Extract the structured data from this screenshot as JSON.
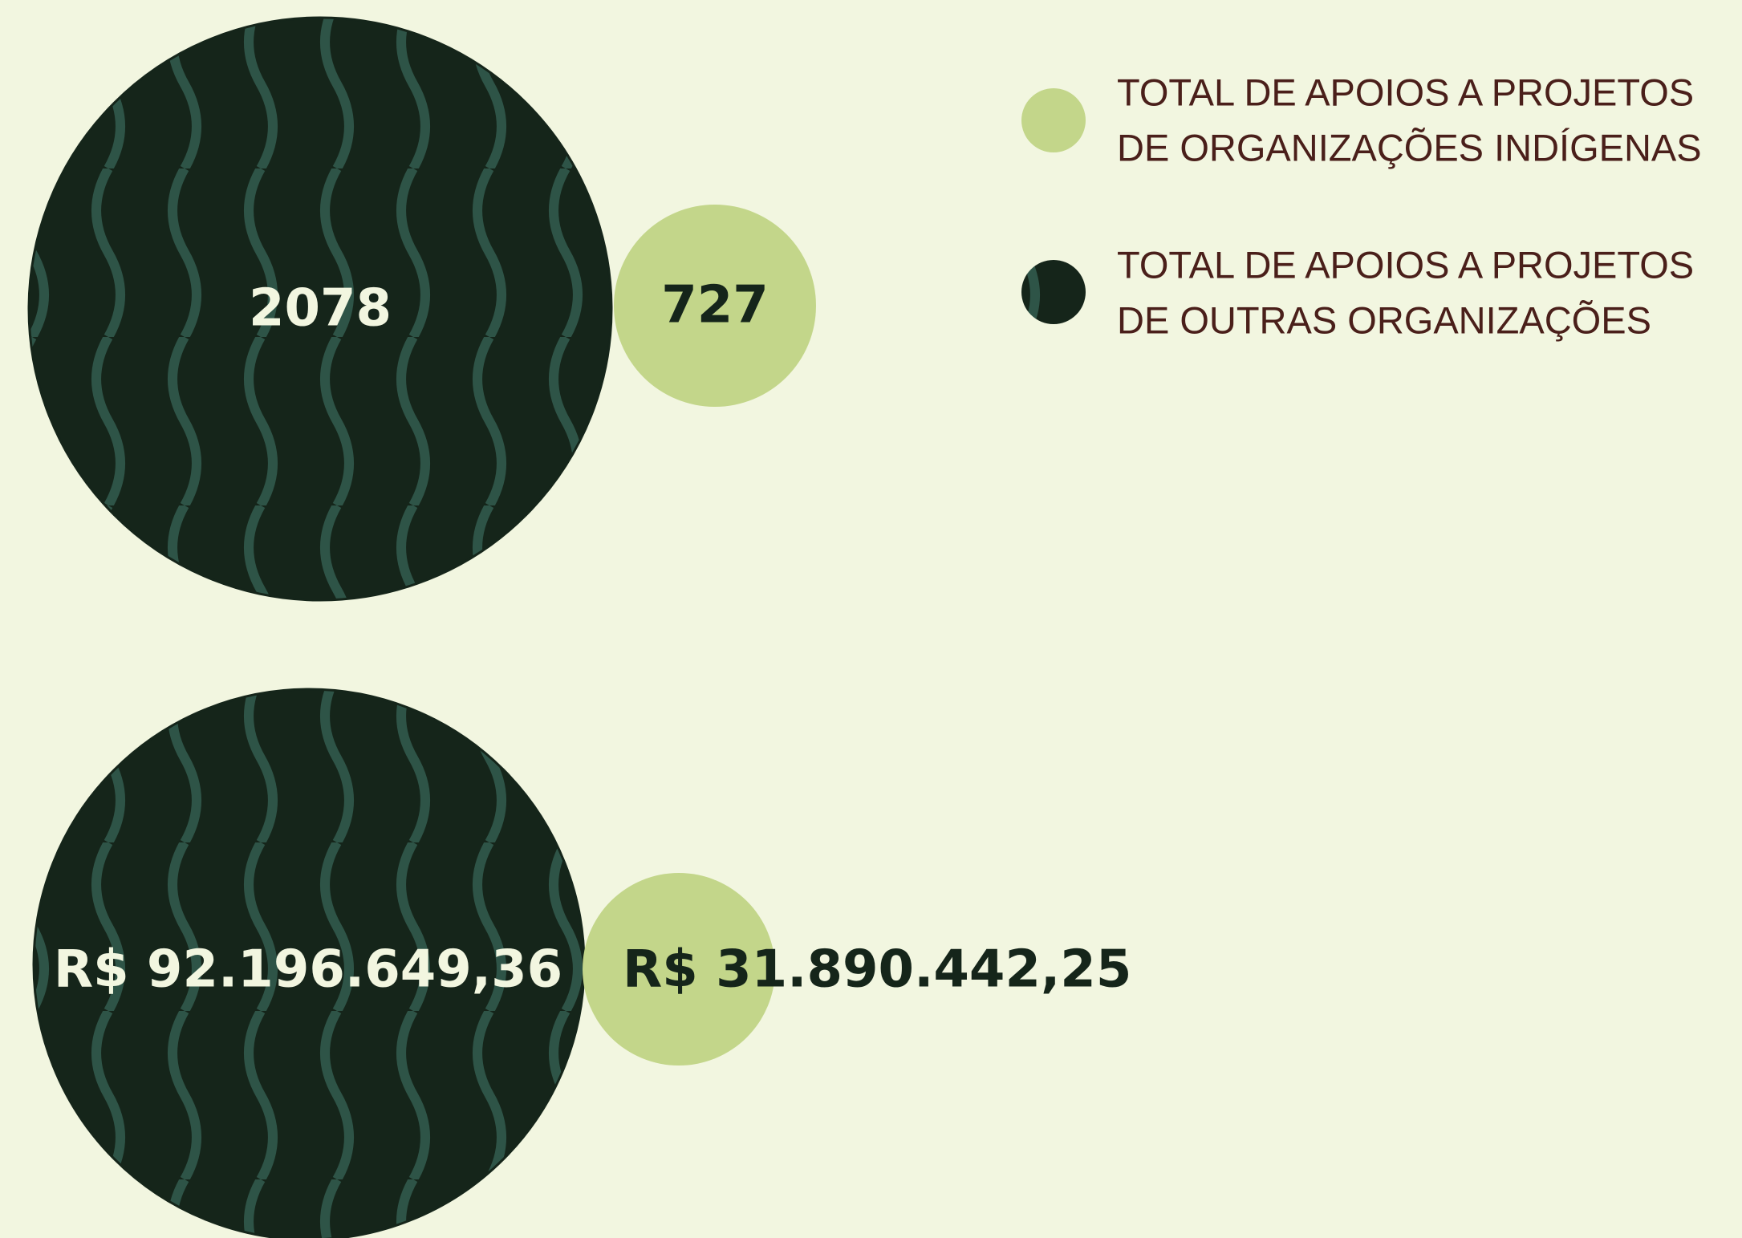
{
  "legend": [
    {
      "lines": [
        "TOTAL DE APOIOS A PROJETOS",
        "DE ORGANIZAÇÕES INDÍGENAS"
      ]
    },
    {
      "lines": [
        "TOTAL DE APOIOS A PROJETOS",
        "DE OUTRAS ORGANIZAÇÕES"
      ]
    }
  ],
  "rows": [
    {
      "outras": "2078",
      "indigenas": "727"
    },
    {
      "outras": "R$ 92.196.649,36",
      "indigenas": "R$ 31.890.442,25"
    }
  ]
}
